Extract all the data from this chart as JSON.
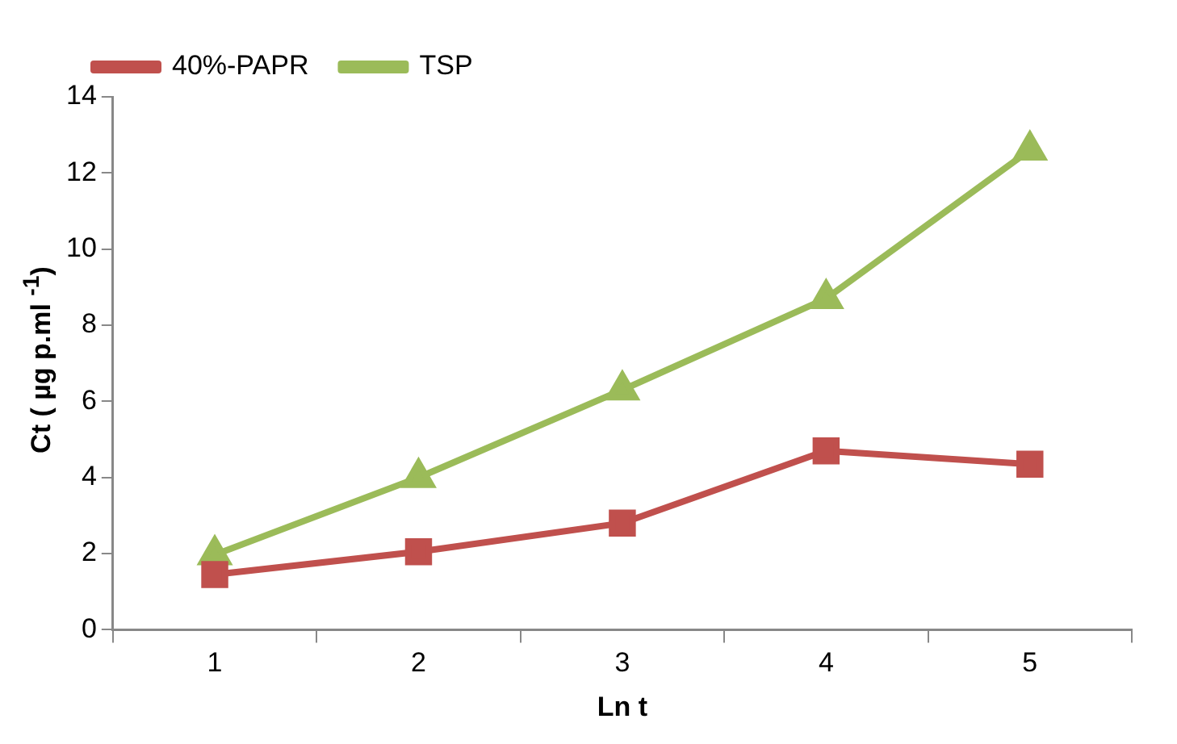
{
  "chart_data": {
    "type": "line",
    "xlabel": "Ln t",
    "ylabel": "Ct ( µg p.ml $^{-1}$)",
    "categories": [
      "1",
      "2",
      "3",
      "4",
      "5"
    ],
    "series": [
      {
        "name": "40%-PAPR",
        "color": "#c0504d",
        "marker": "square",
        "values": [
          1.45,
          2.05,
          2.8,
          4.7,
          4.35
        ]
      },
      {
        "name": "TSP",
        "color": "#9bbb59",
        "marker": "triangle",
        "values": [
          1.97,
          4.0,
          6.3,
          8.7,
          12.6
        ]
      }
    ],
    "ylim": [
      0,
      14
    ],
    "yticks": [
      0,
      2,
      4,
      6,
      8,
      10,
      12,
      14
    ],
    "grid": false,
    "legend": "top left",
    "line_style": "solid"
  }
}
